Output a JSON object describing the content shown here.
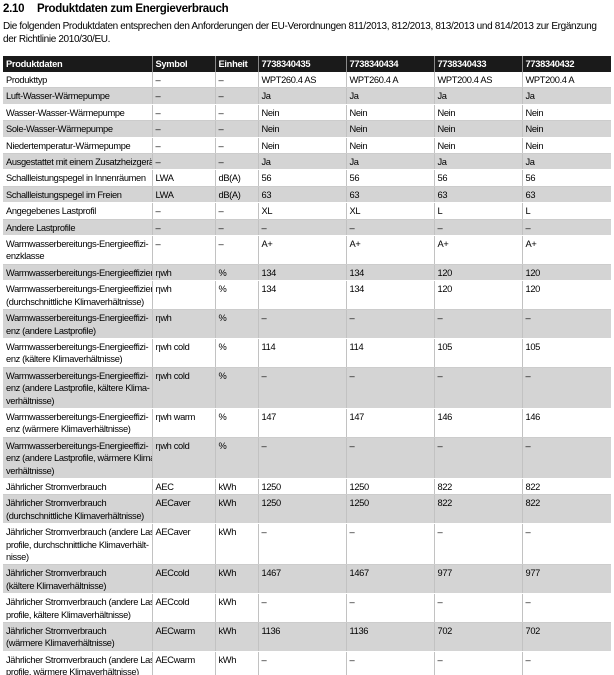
{
  "heading": {
    "number": "2.10",
    "title": "Produktdaten zum Energieverbrauch"
  },
  "intro": "Die folgenden Produktdaten entsprechen den Anforderungen der EU-Verordnungen 811/2013, 812/2013, 813/2013 und 814/2013 zur Ergänzung\nder Richtlinie 2010/30/EU.",
  "colors": {
    "header_bg": "#1a1a1a",
    "shaded_row_bg": "#d4d4d4",
    "grid_line": "#c2c2c2"
  },
  "table": {
    "headers": [
      "Produktdaten",
      "Symbol",
      "Einheit",
      "7738340435",
      "7738340434",
      "7738340433",
      "7738340432"
    ],
    "rows": [
      {
        "label": "Produkttyp",
        "symbol": "–",
        "unit": "–",
        "values": [
          "WPT260.4 AS",
          "WPT260.4 A",
          "WPT200.4 AS",
          "WPT200.4 A"
        ],
        "shaded": false
      },
      {
        "label": "Luft-Wasser-Wärmepumpe",
        "symbol": "–",
        "unit": "–",
        "values": [
          "Ja",
          "Ja",
          "Ja",
          "Ja"
        ],
        "shaded": true
      },
      {
        "label": "Wasser-Wasser-Wärmepumpe",
        "symbol": "–",
        "unit": "–",
        "values": [
          "Nein",
          "Nein",
          "Nein",
          "Nein"
        ],
        "shaded": false
      },
      {
        "label": "Sole-Wasser-Wärmepumpe",
        "symbol": "–",
        "unit": "–",
        "values": [
          "Nein",
          "Nein",
          "Nein",
          "Nein"
        ],
        "shaded": true
      },
      {
        "label": "Niedertemperatur-Wärmepumpe",
        "symbol": "–",
        "unit": "–",
        "values": [
          "Nein",
          "Nein",
          "Nein",
          "Nein"
        ],
        "shaded": false
      },
      {
        "label": "Ausgestattet mit einem Zusatzheizgerät?",
        "symbol": "–",
        "unit": "–",
        "values": [
          "Ja",
          "Ja",
          "Ja",
          "Ja"
        ],
        "shaded": true
      },
      {
        "label": "Schallleistungspegel in Innenräumen",
        "symbol": "LWA",
        "unit": "dB(A)",
        "values": [
          "56",
          "56",
          "56",
          "56"
        ],
        "shaded": false
      },
      {
        "label": "Schallleistungspegel im Freien",
        "symbol": "LWA",
        "unit": "dB(A)",
        "values": [
          "63",
          "63",
          "63",
          "63"
        ],
        "shaded": true
      },
      {
        "label": "Angegebenes Lastprofil",
        "symbol": "–",
        "unit": "–",
        "values": [
          "XL",
          "XL",
          "L",
          "L"
        ],
        "shaded": false
      },
      {
        "label": "Andere Lastprofile",
        "symbol": "–",
        "unit": "–",
        "values": [
          "–",
          "–",
          "–",
          "–"
        ],
        "shaded": true
      },
      {
        "label": "Warmwasserbereitungs-Energieeffizi-\nenzklasse",
        "symbol": "–",
        "unit": "–",
        "values": [
          "A+",
          "A+",
          "A+",
          "A+"
        ],
        "shaded": false
      },
      {
        "label": "Warmwasserbereitungs-Energieeffizienz",
        "symbol": "ηwh",
        "unit": "%",
        "values": [
          "134",
          "134",
          "120",
          "120"
        ],
        "shaded": true
      },
      {
        "label": "Warmwasserbereitungs-Energieeffizienz\n(durchschnittliche Klimaverhältnisse)",
        "symbol": "ηwh",
        "unit": "%",
        "values": [
          "134",
          "134",
          "120",
          "120"
        ],
        "shaded": false
      },
      {
        "label": "Warmwasserbereitungs-Energieeffizi-\nenz (andere Lastprofile)",
        "symbol": "ηwh",
        "unit": "%",
        "values": [
          "–",
          "–",
          "–",
          "–"
        ],
        "shaded": true
      },
      {
        "label": "Warmwasserbereitungs-Energieeffizi-\nenz (kältere Klimaverhältnisse)",
        "symbol": "ηwh cold",
        "unit": "%",
        "values": [
          "114",
          "114",
          "105",
          "105"
        ],
        "shaded": false
      },
      {
        "label": "Warmwasserbereitungs-Energieeffizi-\nenz (andere Lastprofile, kältere Klima-\nverhältnisse)",
        "symbol": "ηwh cold",
        "unit": "%",
        "values": [
          "–",
          "–",
          "–",
          "–"
        ],
        "shaded": true
      },
      {
        "label": "Warmwasserbereitungs-Energieeffizi-\nenz (wärmere Klimaverhältnisse)",
        "symbol": "ηwh warm",
        "unit": "%",
        "values": [
          "147",
          "147",
          "146",
          "146"
        ],
        "shaded": false
      },
      {
        "label": "Warmwasserbereitungs-Energieeffizi-\nenz (andere Lastprofile, wärmere Klima-\nverhältnisse)",
        "symbol": "ηwh cold",
        "unit": "%",
        "values": [
          "–",
          "–",
          "–",
          "–"
        ],
        "shaded": true
      },
      {
        "label": "Jährlicher Stromverbrauch",
        "symbol": "AEC",
        "unit": "kWh",
        "values": [
          "1250",
          "1250",
          "822",
          "822"
        ],
        "shaded": false
      },
      {
        "label": "Jährlicher Stromverbrauch\n(durchschnittliche Klimaverhältnisse)",
        "symbol": "AECaver",
        "unit": "kWh",
        "values": [
          "1250",
          "1250",
          "822",
          "822"
        ],
        "shaded": true
      },
      {
        "label": "Jährlicher Stromverbrauch (andere Last-\nprofile, durchschnittliche Klimaverhält-\nnisse)",
        "symbol": "AECaver",
        "unit": "kWh",
        "values": [
          "–",
          "–",
          "–",
          "–"
        ],
        "shaded": false
      },
      {
        "label": "Jährlicher Stromverbrauch\n(kältere Klimaverhältnisse)",
        "symbol": "AECcold",
        "unit": "kWh",
        "values": [
          "1467",
          "1467",
          "977",
          "977"
        ],
        "shaded": true
      },
      {
        "label": "Jährlicher Stromverbrauch (andere Last-\nprofile, kältere Klimaverhältnisse)",
        "symbol": "AECcold",
        "unit": "kWh",
        "values": [
          "–",
          "–",
          "–",
          "–"
        ],
        "shaded": false
      },
      {
        "label": "Jährlicher Stromverbrauch\n(wärmere Klimaverhältnisse)",
        "symbol": "AECwarm",
        "unit": "kWh",
        "values": [
          "1136",
          "1136",
          "702",
          "702"
        ],
        "shaded": true
      },
      {
        "label": "Jährlicher Stromverbrauch (andere Last-\nprofile, wärmere Klimaverhältnisse)",
        "symbol": "AECwarm",
        "unit": "kWh",
        "values": [
          "–",
          "–",
          "–",
          "–"
        ],
        "shaded": false
      }
    ]
  }
}
